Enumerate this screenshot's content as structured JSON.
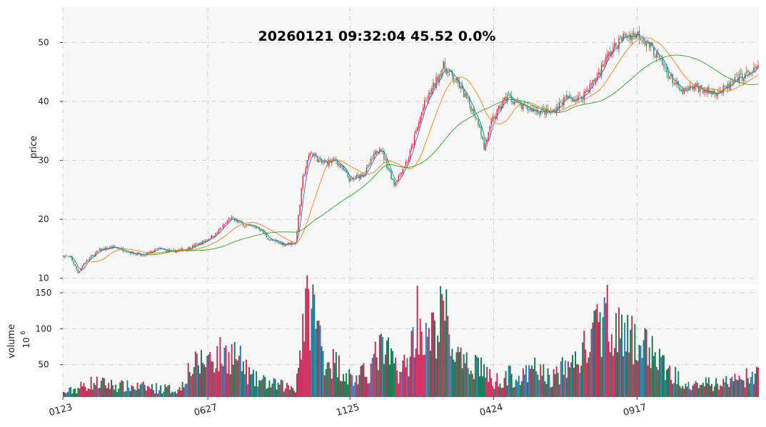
{
  "chart_data": {
    "type": "candlestick",
    "title": "20260121 09:32:04   45.52 0.0%",
    "price_panel": {
      "ylabel": "price",
      "ylim": [
        9,
        56
      ],
      "yticks": [
        10,
        20,
        30,
        40,
        50
      ]
    },
    "volume_panel": {
      "ylabel": "volume",
      "yunit": "10",
      "yunit_exp": "6",
      "ylim": [
        5,
        155
      ],
      "yticks": [
        50,
        100,
        150
      ]
    },
    "x_ticks": [
      {
        "label": "0123",
        "index": 0
      },
      {
        "label": "0627",
        "index": 100
      },
      {
        "label": "1125",
        "index": 198
      },
      {
        "label": "0424",
        "index": 297
      },
      {
        "label": "0917",
        "index": 396
      }
    ],
    "n_bars": 480,
    "close_anchors": [
      [
        0,
        13.8
      ],
      [
        5,
        13.5
      ],
      [
        10,
        11.0
      ],
      [
        15,
        12.8
      ],
      [
        25,
        14.8
      ],
      [
        35,
        15.3
      ],
      [
        45,
        14.5
      ],
      [
        55,
        13.8
      ],
      [
        65,
        15.0
      ],
      [
        75,
        14.5
      ],
      [
        85,
        15.0
      ],
      [
        95,
        16.0
      ],
      [
        105,
        17.5
      ],
      [
        115,
        20.2
      ],
      [
        125,
        19.0
      ],
      [
        135,
        18.5
      ],
      [
        142,
        16.5
      ],
      [
        152,
        15.8
      ],
      [
        160,
        16.0
      ],
      [
        165,
        27.0
      ],
      [
        170,
        31.5
      ],
      [
        178,
        29.5
      ],
      [
        188,
        30.0
      ],
      [
        198,
        26.5
      ],
      [
        208,
        28.0
      ],
      [
        218,
        32.5
      ],
      [
        228,
        26.0
      ],
      [
        238,
        30.5
      ],
      [
        248,
        39.0
      ],
      [
        258,
        44.0
      ],
      [
        262,
        46.0
      ],
      [
        272,
        43.0
      ],
      [
        280,
        39.5
      ],
      [
        287,
        36.0
      ],
      [
        290,
        32.0
      ],
      [
        296,
        37.0
      ],
      [
        306,
        41.0
      ],
      [
        316,
        39.0
      ],
      [
        326,
        38.5
      ],
      [
        336,
        38.0
      ],
      [
        346,
        40.5
      ],
      [
        356,
        40.5
      ],
      [
        366,
        43.5
      ],
      [
        376,
        48.0
      ],
      [
        386,
        51.0
      ],
      [
        396,
        51.5
      ],
      [
        406,
        49.0
      ],
      [
        416,
        45.0
      ],
      [
        426,
        41.5
      ],
      [
        436,
        42.5
      ],
      [
        446,
        41.5
      ],
      [
        456,
        42.0
      ],
      [
        466,
        44.0
      ],
      [
        479,
        45.5
      ]
    ],
    "volume_anchors": [
      [
        0,
        10
      ],
      [
        20,
        25
      ],
      [
        40,
        20
      ],
      [
        60,
        18
      ],
      [
        80,
        15
      ],
      [
        85,
        40
      ],
      [
        100,
        60
      ],
      [
        118,
        65
      ],
      [
        130,
        30
      ],
      [
        145,
        22
      ],
      [
        160,
        18
      ],
      [
        166,
        120
      ],
      [
        172,
        130
      ],
      [
        180,
        60
      ],
      [
        190,
        48
      ],
      [
        200,
        28
      ],
      [
        210,
        40
      ],
      [
        218,
        70
      ],
      [
        225,
        60
      ],
      [
        232,
        40
      ],
      [
        238,
        55
      ],
      [
        244,
        120
      ],
      [
        250,
        80
      ],
      [
        258,
        100
      ],
      [
        262,
        130
      ],
      [
        268,
        75
      ],
      [
        276,
        45
      ],
      [
        286,
        55
      ],
      [
        296,
        25
      ],
      [
        306,
        35
      ],
      [
        316,
        30
      ],
      [
        326,
        45
      ],
      [
        336,
        30
      ],
      [
        346,
        45
      ],
      [
        356,
        60
      ],
      [
        366,
        90
      ],
      [
        376,
        120
      ],
      [
        386,
        85
      ],
      [
        396,
        80
      ],
      [
        406,
        70
      ],
      [
        416,
        40
      ],
      [
        426,
        30
      ],
      [
        436,
        25
      ],
      [
        446,
        22
      ],
      [
        456,
        25
      ],
      [
        466,
        30
      ],
      [
        479,
        35
      ]
    ],
    "moving_averages": [
      {
        "name": "MA5",
        "period": 5,
        "color": "#1f77b4"
      },
      {
        "name": "MA20",
        "period": 20,
        "color": "#ff7f0e"
      },
      {
        "name": "MA60",
        "period": 60,
        "color": "#2ca02c"
      }
    ],
    "colors": {
      "up": "#e3253a",
      "down": "#1a9850",
      "vol_up": "#c22a55",
      "vol_down": "#127a4e",
      "vol_flat": "#2b7bb9",
      "panel_bg": "#f7f7f7"
    }
  }
}
